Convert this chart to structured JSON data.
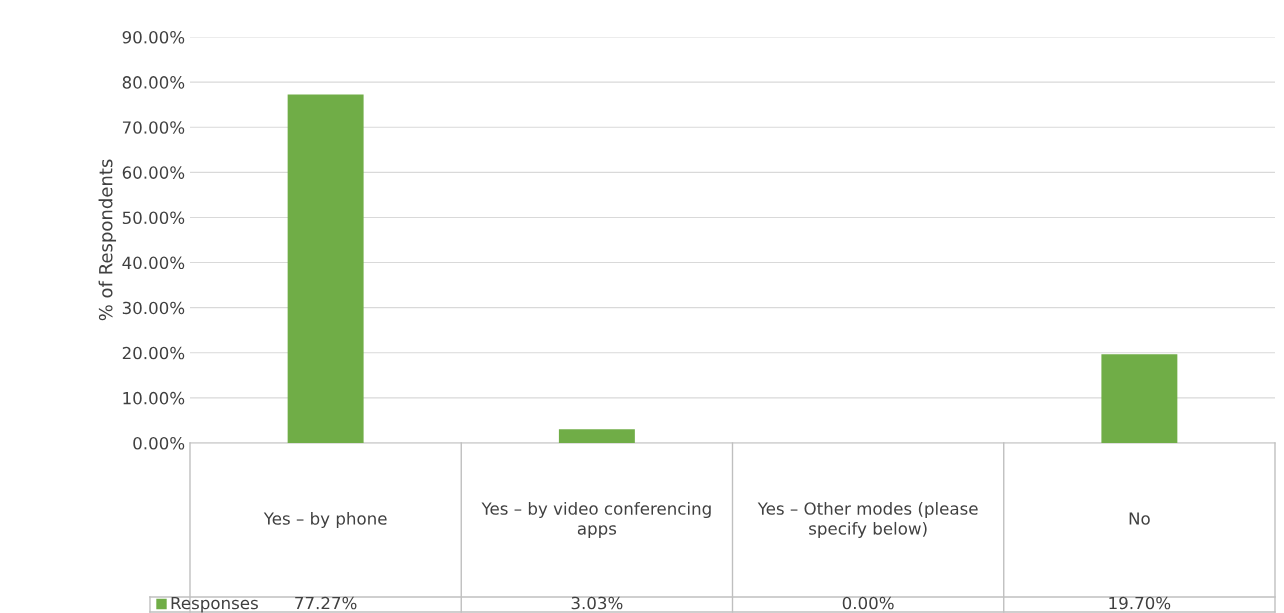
{
  "chart_data": {
    "type": "bar",
    "ylabel": "% of Respondents",
    "categories": [
      "Yes – by phone",
      "Yes – by video conferencing apps",
      "Yes – Other modes (please specify below)",
      "No"
    ],
    "series": [
      {
        "name": "Responses",
        "color": "#70ad47",
        "values": [
          77.27,
          3.03,
          0.0,
          19.7
        ],
        "value_labels": [
          "77.27%",
          "3.03%",
          "0.00%",
          "19.70%"
        ]
      }
    ],
    "ylim": [
      0,
      90
    ],
    "yticks": [
      {
        "value": 0,
        "label": "0.00%"
      },
      {
        "value": 10,
        "label": "10.00%"
      },
      {
        "value": 20,
        "label": "20.00%"
      },
      {
        "value": 30,
        "label": "30.00%"
      },
      {
        "value": 40,
        "label": "40.00%"
      },
      {
        "value": 50,
        "label": "50.00%"
      },
      {
        "value": 60,
        "label": "60.00%"
      },
      {
        "value": 70,
        "label": "70.00%"
      },
      {
        "value": 80,
        "label": "80.00%"
      },
      {
        "value": 90,
        "label": "90.00%"
      }
    ],
    "grid": "y",
    "legend": "bottom left"
  }
}
